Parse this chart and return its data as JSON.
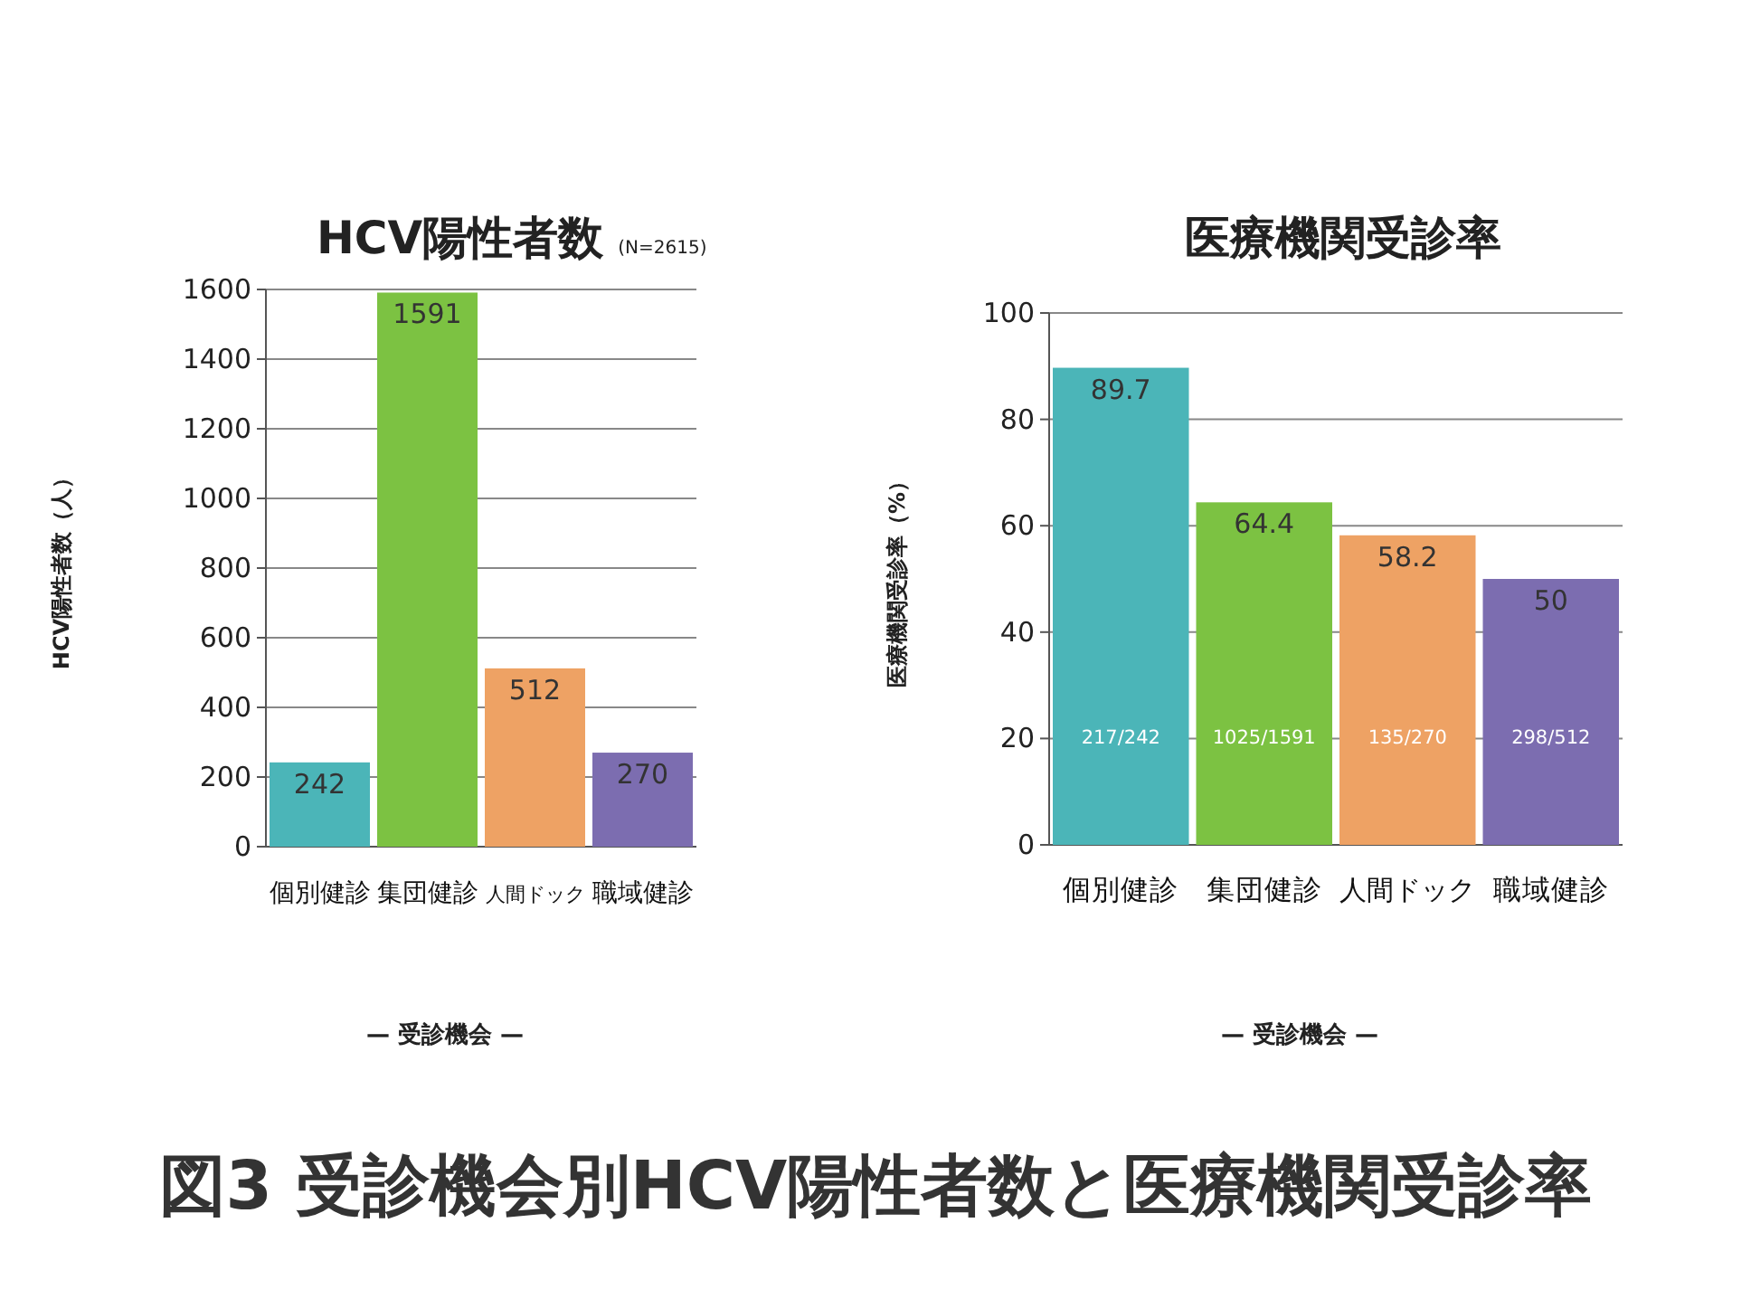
{
  "chart_data": [
    {
      "type": "bar",
      "title": "HCV陽性者数",
      "subtitle": "(N=2615)",
      "xlabel": "— 受診機会 —",
      "ylabel": "HCV陽性者数（人）",
      "categories": [
        "個別健診",
        "集団健診",
        "人間ドック",
        "職域健診"
      ],
      "values": [
        242,
        1591,
        512,
        270
      ],
      "colors": [
        "#4bb5b8",
        "#7cc242",
        "#eea264",
        "#7c6db0"
      ],
      "ylim": [
        0,
        1600
      ],
      "yticks": [
        0,
        200,
        400,
        600,
        800,
        1000,
        1200,
        1400,
        1600
      ],
      "grid": "y",
      "data_labels": true
    },
    {
      "type": "bar",
      "title": "医療機関受診率",
      "xlabel": "— 受診機会 —",
      "ylabel": "医療機関受診率（%）",
      "categories": [
        "個別健診",
        "集団健診",
        "人間ドック",
        "職域健診"
      ],
      "values": [
        89.7,
        64.4,
        58.2,
        50
      ],
      "colors": [
        "#4bb5b8",
        "#7cc242",
        "#eea264",
        "#7c6db0"
      ],
      "ylim": [
        0,
        100
      ],
      "yticks": [
        0,
        20,
        40,
        60,
        80,
        100
      ],
      "grid": "y",
      "data_labels": true,
      "annotations": [
        "217/242",
        "1025/1591",
        "135/270",
        "298/512"
      ]
    },
    {
      "type": "other",
      "title": "図3 受診機会別HCV陽性者数と医療機関受診率"
    }
  ]
}
